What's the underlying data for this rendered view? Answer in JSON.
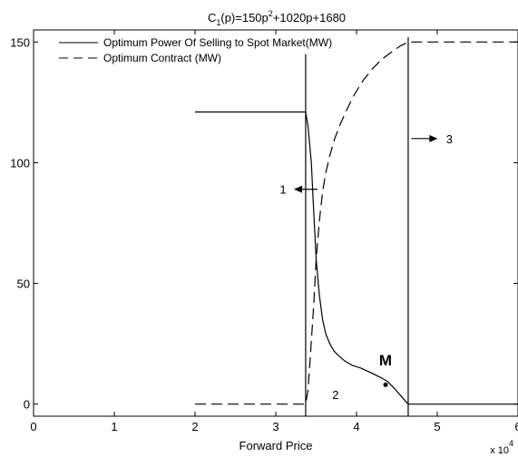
{
  "chart_data": {
    "type": "line",
    "title": {
      "prefix": "C",
      "sub": "1",
      "mid": "(p)=150p",
      "sup": "2",
      "suffix": "+1020p+1680"
    },
    "xlabel": "Forward Price",
    "ylabel": "",
    "x_multiplier": {
      "base": "x 10",
      "exp": "4"
    },
    "xlim": [
      0,
      6
    ],
    "ylim": [
      -5,
      155
    ],
    "xticks": [
      0,
      1,
      2,
      3,
      4,
      5,
      6
    ],
    "xtick_labels": [
      "0",
      "1",
      "2",
      "3",
      "4",
      "5",
      "6"
    ],
    "yticks": [
      0,
      50,
      100,
      150
    ],
    "ytick_labels": [
      "0",
      "50",
      "100",
      "150"
    ],
    "grid": false,
    "legend_position": "top-left",
    "series": [
      {
        "name": "Optimum Power Of Selling to Spot Market(MW)",
        "style": "solid",
        "x": [
          2.0,
          3.37,
          3.4,
          3.44,
          3.47,
          3.5,
          3.54,
          3.58,
          3.62,
          3.67,
          3.72,
          3.78,
          3.85,
          3.95,
          4.05,
          4.18,
          4.3,
          4.38,
          4.47,
          4.56,
          4.64,
          6.0
        ],
        "y": [
          121,
          121,
          115,
          100,
          80,
          60,
          45,
          35,
          29,
          25,
          22,
          20,
          18,
          16,
          15,
          13,
          11,
          9.5,
          6.5,
          3,
          0,
          0
        ]
      },
      {
        "name": "Optimum Contract (MW)",
        "style": "dashed",
        "x": [
          2.0,
          3.37,
          3.4,
          3.43,
          3.47,
          3.5,
          3.54,
          3.58,
          3.62,
          3.67,
          3.73,
          3.8,
          3.88,
          3.97,
          4.08,
          4.2,
          4.32,
          4.44,
          4.55,
          4.64,
          6.0
        ],
        "y": [
          0,
          0,
          6,
          21,
          41,
          60,
          76,
          88,
          96,
          103,
          110,
          116,
          122,
          128,
          134,
          139,
          143,
          146,
          148.5,
          150,
          150
        ]
      }
    ],
    "vertical_lines": [
      3.37,
      4.64
    ],
    "annotations": [
      {
        "label": "1",
        "arrow": "left",
        "x": 3.09,
        "y": 89
      },
      {
        "label": "2",
        "arrow": "none",
        "x": 3.74,
        "y": 4
      },
      {
        "label": "3",
        "arrow": "right",
        "x": 5.15,
        "y": 110
      },
      {
        "label": "M",
        "point": [
          4.36,
          8
        ],
        "x": 4.28,
        "y": 16
      }
    ]
  }
}
